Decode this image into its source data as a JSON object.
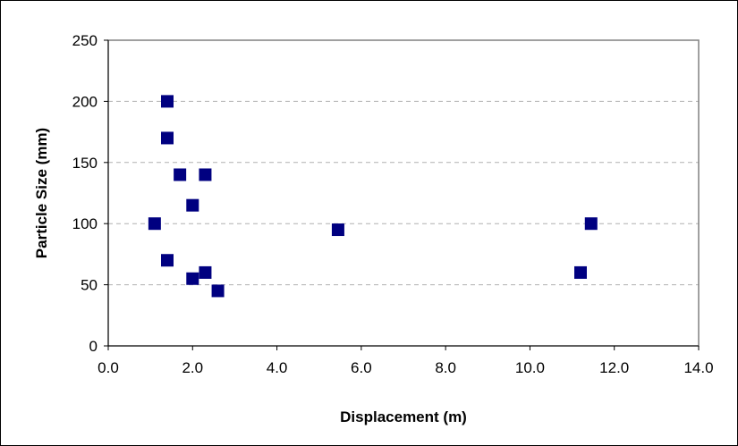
{
  "chart_data": {
    "type": "scatter",
    "title": "",
    "xlabel": "Displacement (m)",
    "ylabel": "Particle Size (mm)",
    "xlim": [
      0,
      14
    ],
    "ylim": [
      0,
      250
    ],
    "x_ticks": [
      "0.0",
      "2.0",
      "4.0",
      "6.0",
      "8.0",
      "10.0",
      "12.0",
      "14.0"
    ],
    "y_ticks": [
      "0",
      "50",
      "100",
      "150",
      "200",
      "250"
    ],
    "grid": "horizontal dashed",
    "legend": "none",
    "marker_color": "#000080",
    "marker": "square",
    "series": [
      {
        "points": [
          {
            "x": 1.1,
            "y": 100
          },
          {
            "x": 1.4,
            "y": 200
          },
          {
            "x": 1.4,
            "y": 170
          },
          {
            "x": 1.4,
            "y": 70
          },
          {
            "x": 1.7,
            "y": 140
          },
          {
            "x": 2.0,
            "y": 115
          },
          {
            "x": 2.0,
            "y": 55
          },
          {
            "x": 2.3,
            "y": 140
          },
          {
            "x": 2.3,
            "y": 60
          },
          {
            "x": 2.6,
            "y": 45
          },
          {
            "x": 5.45,
            "y": 95
          },
          {
            "x": 11.2,
            "y": 60
          },
          {
            "x": 11.45,
            "y": 100
          }
        ]
      }
    ]
  }
}
